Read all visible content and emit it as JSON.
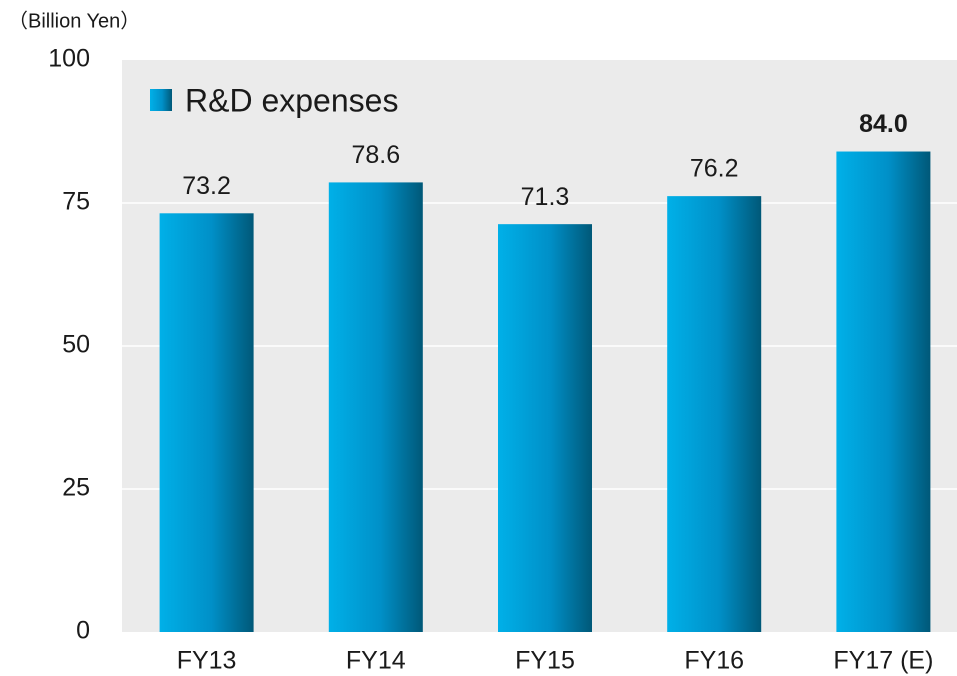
{
  "chart_data": {
    "type": "bar",
    "y_axis_label": "（Billion Yen）",
    "categories": [
      "FY13",
      "FY14",
      "FY15",
      "FY16",
      "FY17 (E)"
    ],
    "series": [
      {
        "name": "R&D expenses",
        "color": "#0099cc",
        "values": [
          73.2,
          78.6,
          71.3,
          76.2,
          84.0
        ],
        "value_labels": [
          "73.2",
          "78.6",
          "71.3",
          "76.2",
          "84.0"
        ]
      }
    ],
    "ylim": [
      0,
      100
    ],
    "yticks": [
      0,
      25,
      50,
      75,
      100
    ],
    "grid": true,
    "legend": "top-left"
  }
}
